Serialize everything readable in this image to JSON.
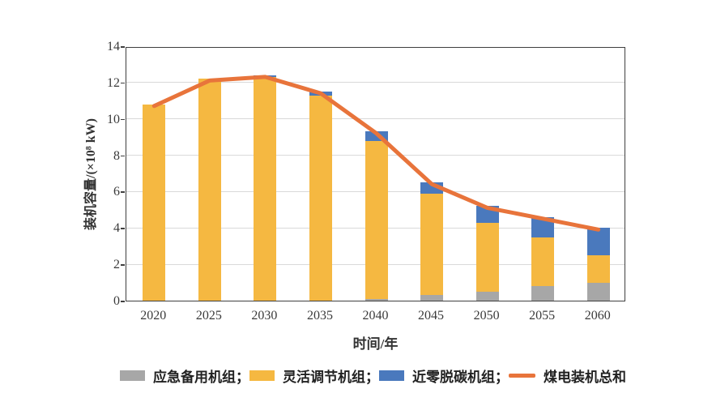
{
  "chart_data": {
    "type": "bar",
    "subtype": "stacked-bar-with-line",
    "categories": [
      "2020",
      "2025",
      "2030",
      "2035",
      "2040",
      "2045",
      "2050",
      "2055",
      "2060"
    ],
    "series": [
      {
        "name": "应急备用机组",
        "kind": "bar",
        "color": "#a7a7a7",
        "values": [
          0,
          0,
          0,
          0,
          0.1,
          0.3,
          0.5,
          0.8,
          1.0
        ]
      },
      {
        "name": "灵活调节机组",
        "kind": "bar",
        "color": "#f5b841",
        "values": [
          10.8,
          12.2,
          12.3,
          11.3,
          8.7,
          5.6,
          3.8,
          2.7,
          1.5
        ]
      },
      {
        "name": "近零脱碳机组",
        "kind": "bar",
        "color": "#4a79bd",
        "values": [
          0,
          0,
          0.1,
          0.2,
          0.5,
          0.6,
          0.9,
          1.1,
          1.5
        ]
      },
      {
        "name": "煤电装机总和",
        "kind": "line",
        "color": "#e8743b",
        "values": [
          10.8,
          12.2,
          12.4,
          11.5,
          9.3,
          6.5,
          5.2,
          4.6,
          4.0
        ]
      }
    ],
    "title": "",
    "xlabel": "时间/年",
    "ylabel": "装机容量/(×10⁸ kW)",
    "ylim": [
      0,
      14
    ],
    "ytick_step": 2,
    "yticks": [
      "0",
      "2",
      "4",
      "6",
      "8",
      "10",
      "12",
      "14"
    ],
    "grid": true,
    "legend_position": "bottom"
  },
  "axes": {
    "xlabel": "时间/年",
    "ylabel": "装机容量/(×10⁸ kW)"
  },
  "legend": {
    "items": [
      {
        "label": "应急备用机组；",
        "color": "#a7a7a7",
        "swatch": "rect"
      },
      {
        "label": "灵活调节机组；",
        "color": "#f5b841",
        "swatch": "rect"
      },
      {
        "label": "近零脱碳机组；",
        "color": "#4a79bd",
        "swatch": "rect"
      },
      {
        "label": "煤电装机总和",
        "color": "#e8743b",
        "swatch": "line"
      }
    ]
  },
  "colors": {
    "grid": "#d9d9d9",
    "axis": "#3f3f3f",
    "background": "#ffffff"
  }
}
